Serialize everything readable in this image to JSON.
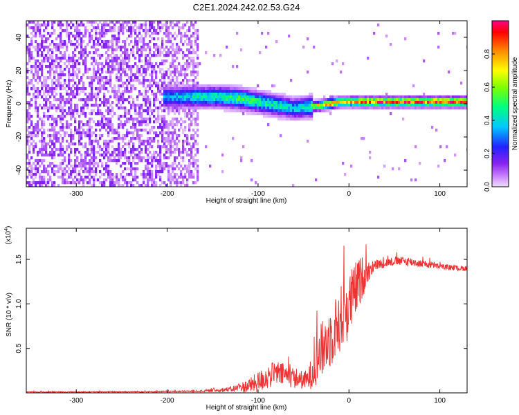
{
  "chart_data": [
    {
      "type": "heatmap",
      "title": "C2E1.2024.242.02.53.G24",
      "xlabel": "Height of straight line (km)",
      "ylabel": "Frequency (Hz)",
      "xlim": [
        -355,
        130
      ],
      "ylim": [
        -50,
        50
      ],
      "xticks": [
        -300,
        -200,
        -100,
        0,
        100
      ],
      "xtick_labels": [
        "-300",
        "-200",
        "-100",
        "0",
        "100"
      ],
      "yticks": [
        -40,
        -20,
        0,
        20,
        40
      ],
      "ytick_labels": [
        "-40",
        "-20",
        "0",
        "20",
        "40"
      ],
      "colorbar": {
        "label": "Normalized spectral amplitude",
        "range": [
          0,
          1
        ],
        "ticks": [
          0.0,
          0.2,
          0.4,
          0.6,
          0.8
        ],
        "tick_labels": [
          "0.0",
          "0.2",
          "0.4",
          "0.6",
          "0.8"
        ]
      },
      "ridge": {
        "x": [
          -200,
          -165,
          -140,
          -120,
          -100,
          -80,
          -60,
          -45,
          -30,
          -20,
          -10,
          0,
          20,
          40,
          60,
          80,
          100,
          130
        ],
        "freq": [
          4,
          4,
          4,
          3,
          1,
          -1,
          -3,
          -2,
          -1,
          0,
          1,
          1,
          1,
          1,
          1,
          1,
          1,
          1
        ],
        "amplitude": [
          0.35,
          0.45,
          0.5,
          0.55,
          0.5,
          0.45,
          0.4,
          0.45,
          0.8,
          0.85,
          0.8,
          0.8,
          0.9,
          0.95,
          0.95,
          0.95,
          0.95,
          0.95
        ]
      }
    },
    {
      "type": "line",
      "xlabel": "Height of straight line (km)",
      "ylabel": "SNR (10 * v/v)",
      "multiplier_label": "(x10",
      "multiplier_exp": "4",
      "multiplier_close": ")",
      "xlim": [
        -355,
        130
      ],
      "ylim": [
        0,
        1.85
      ],
      "xticks": [
        -300,
        -200,
        -100,
        0,
        100
      ],
      "xtick_labels": [
        "-300",
        "-200",
        "-100",
        "0",
        "100"
      ],
      "yticks": [
        0.5,
        1.0,
        1.5
      ],
      "ytick_labels": [
        "0.5",
        "1.0",
        "1.5"
      ],
      "color": "#ee3333",
      "series": [
        {
          "x": [
            -355,
            -300,
            -200,
            -160,
            -130,
            -110,
            -100,
            -90,
            -80,
            -70,
            -60,
            -50,
            -45,
            -40,
            -35,
            -30,
            -25,
            -20,
            -15,
            -10,
            -5,
            0,
            5,
            10,
            15,
            20,
            25,
            30,
            40,
            50,
            60,
            70,
            80,
            90,
            100,
            110,
            120,
            130
          ],
          "mean": [
            0.01,
            0.01,
            0.015,
            0.02,
            0.04,
            0.08,
            0.12,
            0.18,
            0.22,
            0.2,
            0.17,
            0.14,
            0.15,
            0.25,
            0.38,
            0.48,
            0.56,
            0.64,
            0.72,
            0.82,
            0.9,
            0.98,
            1.1,
            1.22,
            1.3,
            1.36,
            1.4,
            1.44,
            1.46,
            1.48,
            1.48,
            1.47,
            1.45,
            1.44,
            1.42,
            1.41,
            1.4,
            1.4
          ],
          "spread": [
            0.005,
            0.005,
            0.008,
            0.01,
            0.03,
            0.08,
            0.12,
            0.14,
            0.14,
            0.13,
            0.12,
            0.1,
            0.12,
            0.2,
            0.28,
            0.32,
            0.34,
            0.36,
            0.36,
            0.38,
            0.38,
            0.38,
            0.34,
            0.3,
            0.24,
            0.14,
            0.08,
            0.06,
            0.05,
            0.05,
            0.05,
            0.05,
            0.04,
            0.04,
            0.03,
            0.03,
            0.03,
            0.03
          ]
        }
      ]
    }
  ]
}
